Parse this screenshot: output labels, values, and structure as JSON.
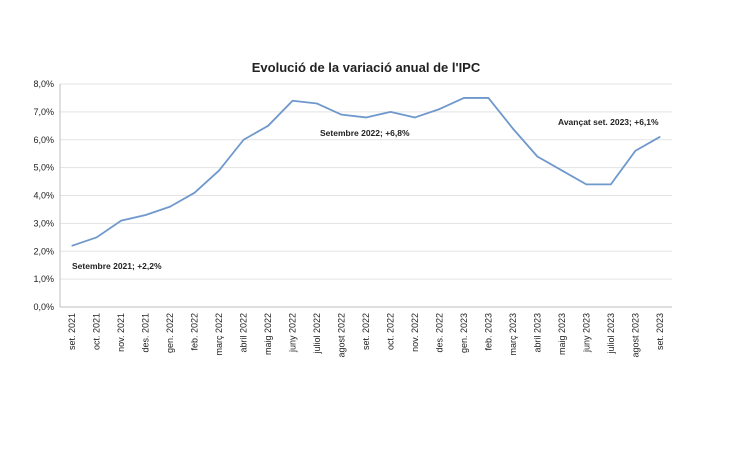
{
  "chart_data": {
    "type": "line",
    "title": "Evolució de la variació anual de l'IPC",
    "xlabel": "",
    "ylabel": "",
    "ylim": [
      0,
      8
    ],
    "yticks": [
      "0,0%",
      "1,0%",
      "2,0%",
      "3,0%",
      "4,0%",
      "5,0%",
      "6,0%",
      "7,0%",
      "8,0%"
    ],
    "grid": true,
    "categories": [
      "set. 2021",
      "oct. 2021",
      "nov. 2021",
      "des. 2021",
      "gen. 2022",
      "feb. 2022",
      "març 2022",
      "abril 2022",
      "maig 2022",
      "juny 2022",
      "juliol 2022",
      "agost 2022",
      "set. 2022",
      "oct. 2022",
      "nov. 2022",
      "des. 2022",
      "gen. 2023",
      "feb. 2023",
      "març 2023",
      "abril 2023",
      "maig 2023",
      "juny 2023",
      "juliol 2023",
      "agost 2023",
      "set. 2023"
    ],
    "series": [
      {
        "values": [
          2.2,
          2.5,
          3.1,
          3.3,
          3.6,
          4.1,
          4.9,
          6.0,
          6.5,
          7.4,
          7.3,
          6.9,
          6.8,
          7.0,
          6.8,
          7.1,
          7.5,
          7.5,
          6.4,
          5.4,
          4.9,
          4.4,
          4.4,
          5.6,
          6.1
        ],
        "color": "#6f98cc"
      }
    ],
    "annotations": [
      {
        "text": "Setembre 2021; +2,2%",
        "category": "set. 2021"
      },
      {
        "text": "Setembre 2022;  +6,8%",
        "category": "set. 2022"
      },
      {
        "text": "Avançat set. 2023; +6,1%",
        "category": "set. 2023"
      }
    ]
  }
}
